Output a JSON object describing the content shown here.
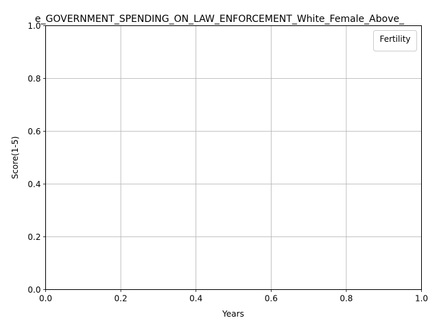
{
  "chart_data": {
    "type": "line",
    "title": "e_GOVERNMENT_SPENDING_ON_LAW_ENFORCEMENT_White_Female_Above_",
    "xlabel": "Years",
    "ylabel": "Score(1-5)",
    "xlim": [
      0.0,
      1.0
    ],
    "ylim": [
      0.0,
      1.0
    ],
    "x_ticks": [
      "0.0",
      "0.2",
      "0.4",
      "0.6",
      "0.8",
      "1.0"
    ],
    "y_ticks": [
      "0.0",
      "0.2",
      "0.4",
      "0.6",
      "0.8",
      "1.0"
    ],
    "grid": true,
    "legend": {
      "title": "Fertility",
      "placement": "top-right",
      "entries": []
    },
    "series": []
  }
}
